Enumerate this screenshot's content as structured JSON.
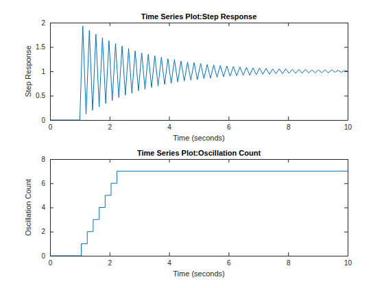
{
  "chart_data": [
    {
      "type": "line",
      "title": "Time Series Plot:Step Response",
      "x_label": "Time (seconds)",
      "y_label": "Step Response",
      "color": "#0072bd",
      "x": [
        0,
        1.0,
        1.1,
        1.21,
        1.32,
        1.43,
        1.54,
        1.65,
        1.76,
        1.87,
        1.98,
        2.09,
        2.2,
        2.31,
        2.42,
        2.53,
        2.64,
        2.75,
        2.86,
        2.97,
        3.08,
        3.19,
        3.3,
        3.41,
        3.52,
        3.63,
        3.74,
        3.85,
        3.96,
        4.07,
        4.18,
        4.29,
        4.4,
        4.51,
        4.62,
        4.73,
        4.84,
        4.95,
        5.06,
        5.17,
        5.28,
        5.39,
        5.5,
        5.61,
        5.72,
        5.83,
        5.94,
        6.05,
        6.16,
        6.27,
        6.38,
        6.49,
        6.6,
        6.71,
        6.82,
        6.93,
        7.04,
        7.15,
        7.26,
        7.37,
        7.48,
        7.59,
        7.7,
        7.81,
        7.92,
        8.03,
        8.14,
        8.25,
        8.36,
        8.47,
        8.58,
        8.69,
        8.8,
        8.91,
        9.02,
        9.13,
        9.24,
        9.35,
        9.46,
        9.57,
        9.68,
        9.79,
        9.9,
        10
      ],
      "values": [
        0,
        0,
        1.93,
        0.12,
        1.84,
        0.2,
        1.76,
        0.27,
        1.69,
        0.34,
        1.63,
        0.4,
        1.57,
        0.46,
        1.52,
        0.51,
        1.47,
        0.55,
        1.42,
        0.6,
        1.38,
        0.63,
        1.35,
        0.67,
        1.32,
        0.7,
        1.29,
        0.73,
        1.26,
        0.75,
        1.24,
        0.78,
        1.21,
        0.8,
        1.19,
        0.82,
        1.18,
        0.83,
        1.16,
        0.85,
        1.14,
        0.86,
        1.13,
        0.88,
        1.12,
        0.89,
        1.11,
        0.9,
        1.1,
        0.91,
        1.09,
        0.92,
        1.08,
        0.92,
        1.07,
        0.93,
        1.07,
        0.94,
        1.06,
        0.94,
        1.05,
        0.95,
        1.05,
        0.95,
        1.05,
        0.96,
        1.04,
        0.96,
        1.04,
        0.96,
        1.04,
        0.97,
        1.03,
        0.97,
        1.03,
        0.97,
        1.03,
        0.97,
        1.03,
        0.98,
        1.02,
        0.98,
        1.02,
        1.0
      ],
      "xlim": [
        0,
        10
      ],
      "ylim": [
        0,
        2
      ],
      "xticks": [
        0,
        2,
        4,
        6,
        8,
        10
      ],
      "yticks": [
        0,
        0.5,
        1,
        1.5,
        2
      ]
    },
    {
      "type": "step",
      "title": "Time Series Plot:Oscillation Count",
      "x_label": "Time (seconds)",
      "y_label": "Oscillation Count",
      "color": "#0072bd",
      "x": [
        0,
        1.05,
        1.25,
        1.45,
        1.65,
        1.85,
        2.05,
        2.25,
        10
      ],
      "values": [
        0,
        1,
        2,
        3,
        4,
        5,
        6,
        7,
        7
      ],
      "xlim": [
        0,
        10
      ],
      "ylim": [
        0,
        8
      ],
      "xticks": [
        0,
        2,
        4,
        6,
        8,
        10
      ],
      "yticks": [
        0,
        2,
        4,
        6,
        8
      ]
    }
  ]
}
